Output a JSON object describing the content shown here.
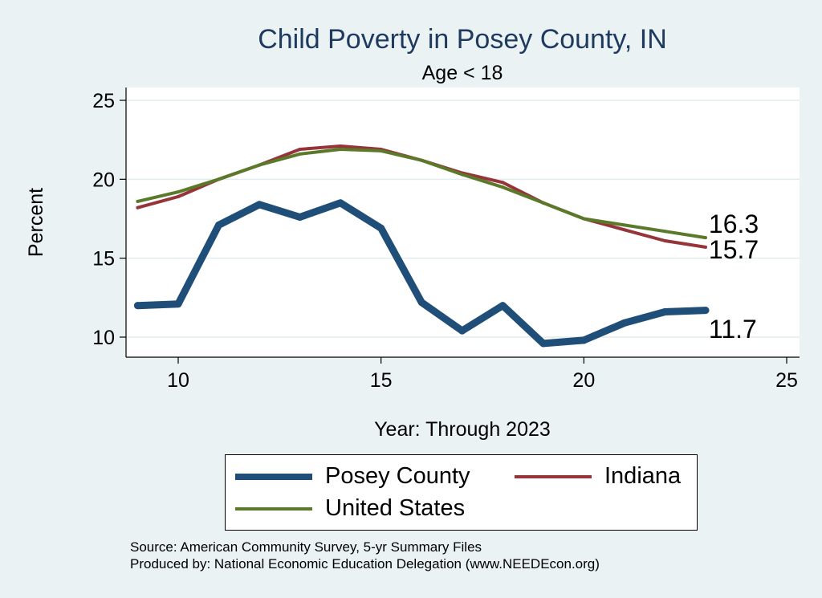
{
  "chart_data": {
    "type": "line",
    "title": "Child Poverty in Posey County, IN",
    "subtitle": "Age < 18",
    "xlabel": "Year: Through 2023",
    "ylabel": "Percent",
    "xlim": [
      9,
      25
    ],
    "ylim": [
      9,
      26
    ],
    "xticks": [
      10,
      15,
      20,
      25
    ],
    "yticks": [
      10,
      15,
      20,
      25
    ],
    "grid": true,
    "legend_position": "bottom",
    "series": [
      {
        "name": "Posey County",
        "color": "#1f4e79",
        "x": [
          9,
          10,
          11,
          12,
          13,
          14,
          15,
          16,
          17,
          18,
          19,
          20,
          21,
          22,
          23
        ],
        "values": [
          12.0,
          12.1,
          17.1,
          18.4,
          17.6,
          18.5,
          16.9,
          12.2,
          10.4,
          12.0,
          9.6,
          9.8,
          10.9,
          11.6,
          11.7
        ],
        "end_label": "11.7"
      },
      {
        "name": "Indiana",
        "color": "#96343a",
        "x": [
          9,
          10,
          11,
          12,
          13,
          14,
          15,
          16,
          17,
          18,
          19,
          20,
          21,
          22,
          23
        ],
        "values": [
          18.2,
          18.9,
          20.0,
          20.9,
          21.9,
          22.1,
          21.9,
          21.2,
          20.4,
          19.8,
          18.5,
          17.5,
          16.8,
          16.1,
          15.7
        ],
        "end_label": "15.7"
      },
      {
        "name": "United States",
        "color": "#5a7a2a",
        "x": [
          9,
          10,
          11,
          12,
          13,
          14,
          15,
          16,
          17,
          18,
          19,
          20,
          21,
          22,
          23
        ],
        "values": [
          18.6,
          19.2,
          20.0,
          20.9,
          21.6,
          21.9,
          21.8,
          21.2,
          20.3,
          19.5,
          18.5,
          17.5,
          17.1,
          16.7,
          16.3
        ],
        "end_label": "16.3"
      }
    ]
  },
  "source": {
    "line1": "Source: American Community Survey, 5-yr Summary Files",
    "line2": "Produced by: National Economic Education Delegation (www.NEEDEcon.org)"
  }
}
